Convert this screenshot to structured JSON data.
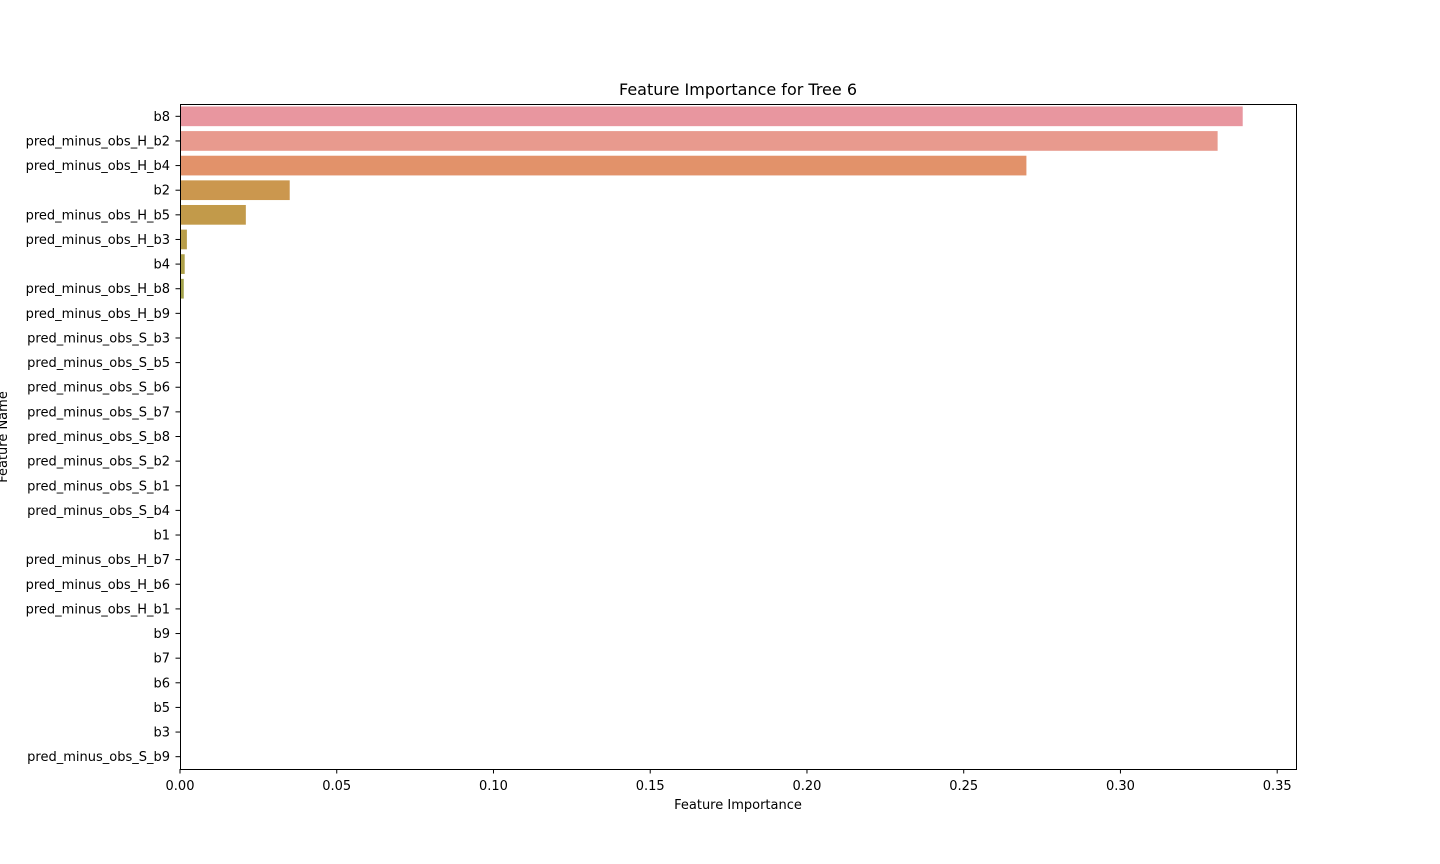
{
  "chart_data": {
    "type": "bar",
    "orientation": "horizontal",
    "title": "Feature Importance for Tree 6",
    "xlabel": "Feature Importance",
    "ylabel": "Feature Name",
    "xlim": [
      0,
      0.356
    ],
    "xticks": [
      "0.00",
      "0.05",
      "0.10",
      "0.15",
      "0.20",
      "0.25",
      "0.30",
      "0.35"
    ],
    "grid": false,
    "categories": [
      "b8",
      "pred_minus_obs_H_b2",
      "pred_minus_obs_H_b4",
      "b2",
      "pred_minus_obs_H_b5",
      "pred_minus_obs_H_b3",
      "b4",
      "pred_minus_obs_H_b8",
      "pred_minus_obs_H_b9",
      "pred_minus_obs_S_b3",
      "pred_minus_obs_S_b5",
      "pred_minus_obs_S_b6",
      "pred_minus_obs_S_b7",
      "pred_minus_obs_S_b8",
      "pred_minus_obs_S_b2",
      "pred_minus_obs_S_b1",
      "pred_minus_obs_S_b4",
      "b1",
      "pred_minus_obs_H_b7",
      "pred_minus_obs_H_b6",
      "pred_minus_obs_H_b1",
      "b9",
      "b7",
      "b6",
      "b5",
      "b3",
      "pred_minus_obs_S_b9"
    ],
    "values": [
      0.339,
      0.331,
      0.27,
      0.035,
      0.021,
      0.0022,
      0.0015,
      0.0012,
      0,
      0,
      0,
      0,
      0,
      0,
      0,
      0,
      0,
      0,
      0,
      0,
      0,
      0,
      0,
      0,
      0,
      0,
      0
    ],
    "colors": [
      "#e8969f",
      "#e89a8e",
      "#e2926a",
      "#cb974e",
      "#c29a4a",
      "#b89d49",
      "#aea04a",
      "#a3a24b",
      "#98a44d",
      "#8ca74f",
      "#7da953",
      "#6cac58",
      "#5aae61",
      "#51ae75",
      "#4cad84",
      "#4aac8f",
      "#49ab98",
      "#4aaaa1",
      "#4ba8ab",
      "#4ea6b6",
      "#53a4c2",
      "#5c9fd0",
      "#789adb",
      "#9b91dc",
      "#b88ad8",
      "#cd85ce",
      "#de87b8"
    ]
  }
}
